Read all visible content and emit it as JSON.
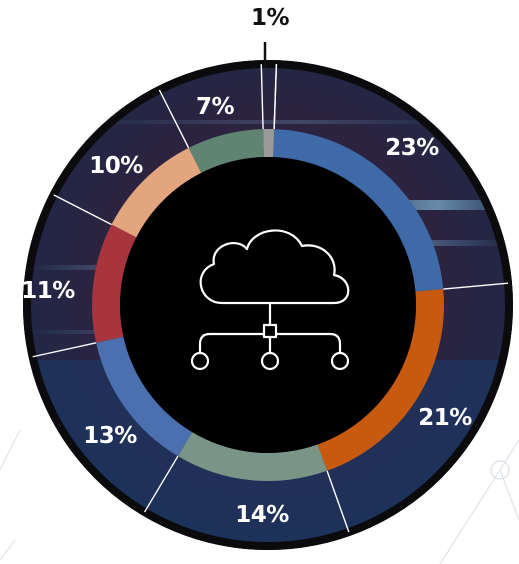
{
  "colors": {
    "background": "#ffffff",
    "outer_ring": "#0b0b0d",
    "center": "#000000",
    "icon_stroke": "#ffffff"
  },
  "center_icon": "cloud-network-icon",
  "chart_data": {
    "type": "pie",
    "style": "donut",
    "title": "",
    "grid": false,
    "legend": "none",
    "slices": [
      {
        "label": "23%",
        "value": 23,
        "color": "#3f6aa8"
      },
      {
        "label": "21%",
        "value": 21,
        "color": "#c85a10"
      },
      {
        "label": "14%",
        "value": 14,
        "color": "#7a9487"
      },
      {
        "label": "13%",
        "value": 13,
        "color": "#4b70b0"
      },
      {
        "label": "11%",
        "value": 11,
        "color": "#a8343e"
      },
      {
        "label": "10%",
        "value": 10,
        "color": "#e3a57e"
      },
      {
        "label": "7%",
        "value": 7,
        "color": "#5f8472"
      },
      {
        "label": "1%",
        "value": 1,
        "color": "#9a9a9a"
      }
    ]
  }
}
